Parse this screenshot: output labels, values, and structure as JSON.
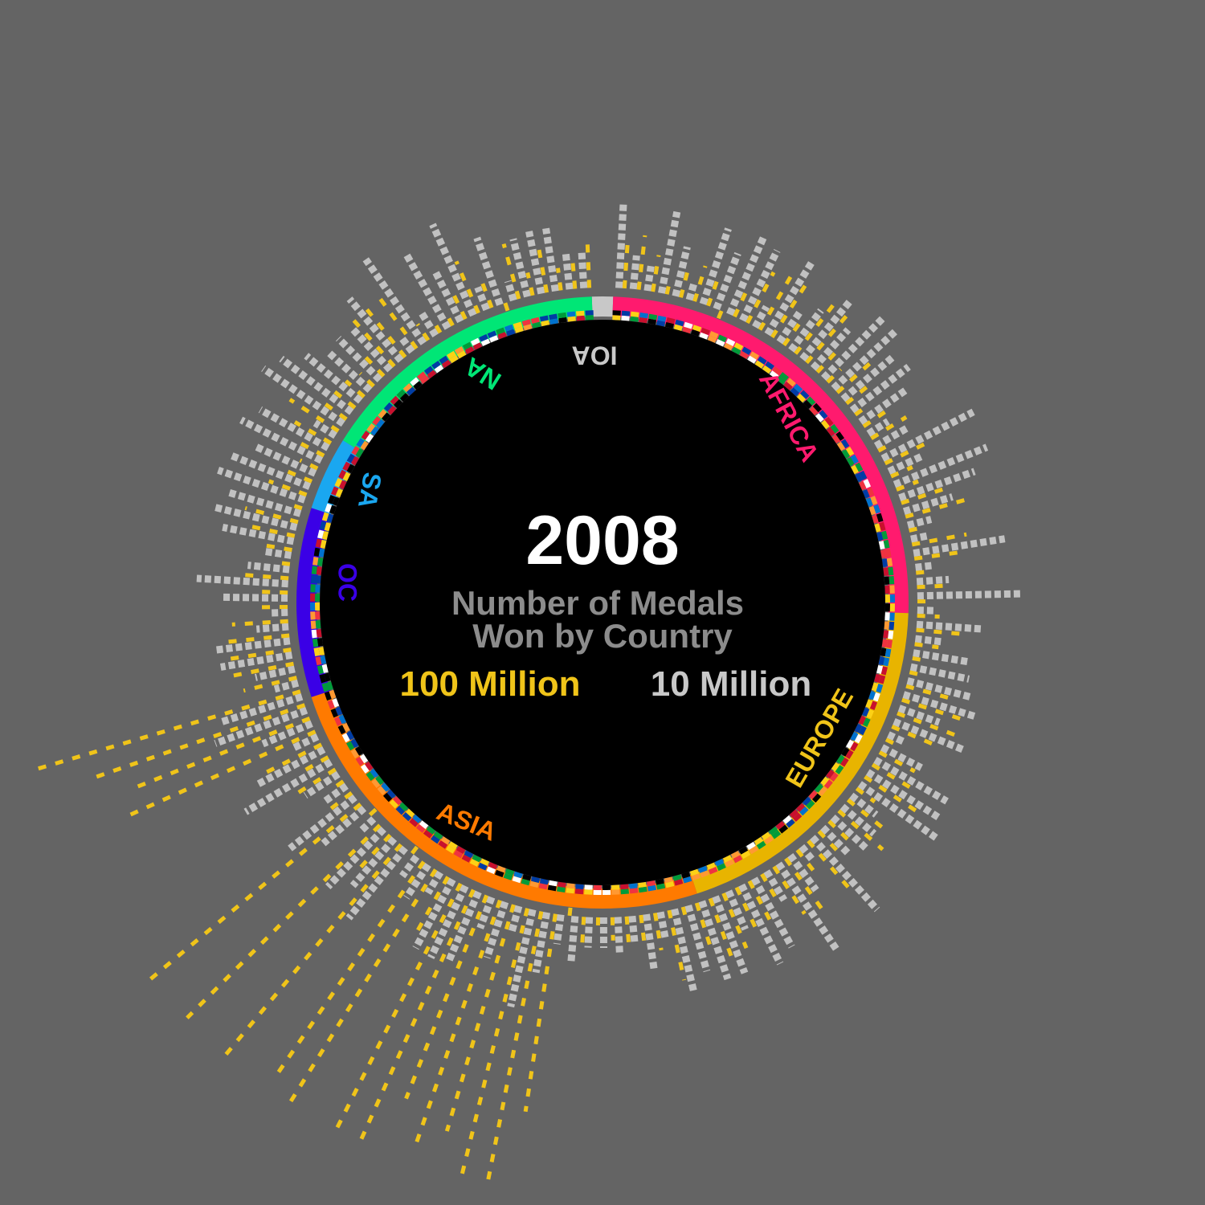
{
  "chart_data": {
    "type": "radial-bar",
    "year": "2008",
    "title_line1": "Number of Medals",
    "title_line2": "Won by Country",
    "legend": [
      {
        "label": "100 Million",
        "color": "#f0c419"
      },
      {
        "label": "10 Million",
        "color": "#c8c8c8"
      }
    ],
    "regions": [
      {
        "name": "IOA",
        "color": "#c8c8c8",
        "start_deg": -2,
        "end_deg": 2,
        "label_color": "#c8c8c8"
      },
      {
        "name": "AFRICA",
        "color": "#ff1a6e",
        "start_deg": 2,
        "end_deg": 92,
        "label_color": "#ff1a6e"
      },
      {
        "name": "EUROPE",
        "color": "#e8b400",
        "start_deg": 92,
        "end_deg": 162,
        "label_color": "#f0c419"
      },
      {
        "name": "ASIA",
        "color": "#ff7a00",
        "start_deg": 162,
        "end_deg": 252,
        "label_color": "#ff7a00"
      },
      {
        "name": "OC",
        "color": "#3a00e6",
        "start_deg": 252,
        "end_deg": 288,
        "label_color": "#3a00e6"
      },
      {
        "name": "SA",
        "color": "#1aa7f0",
        "start_deg": 288,
        "end_deg": 302,
        "label_color": "#1aa7f0"
      },
      {
        "name": "NA",
        "color": "#00e676",
        "start_deg": 302,
        "end_deg": 358,
        "label_color": "#00e676"
      }
    ]
  }
}
